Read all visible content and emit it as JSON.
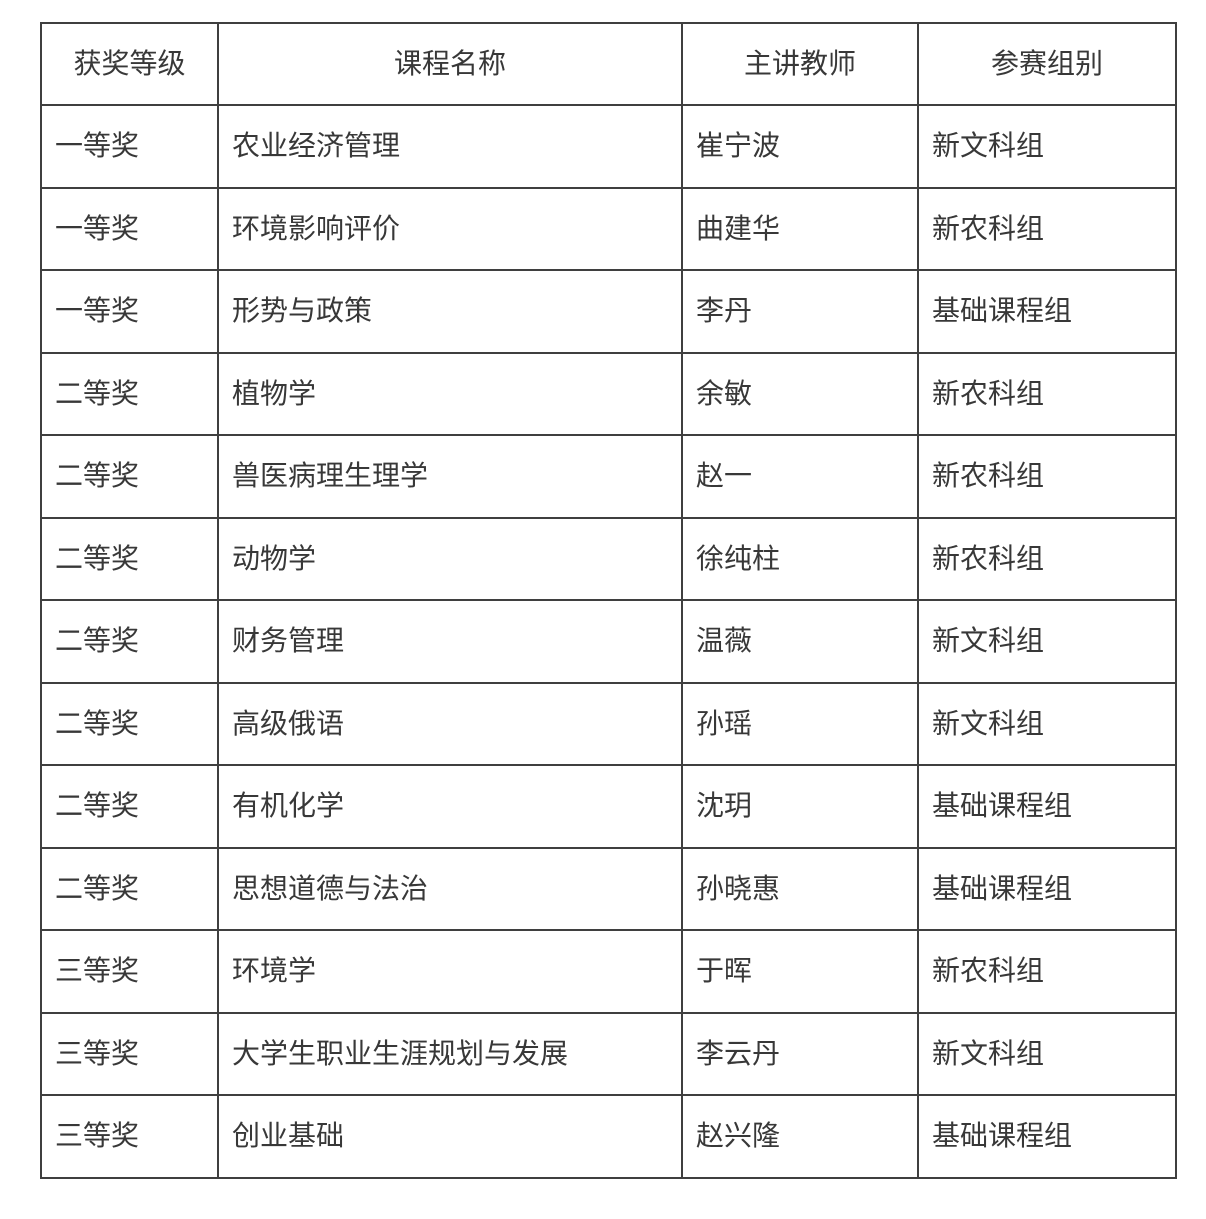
{
  "table": {
    "headers": {
      "award_level": "获奖等级",
      "course_name": "课程名称",
      "teacher": "主讲教师",
      "group": "参赛组别"
    },
    "rows": [
      [
        "一等奖",
        "农业经济管理",
        "崔宁波",
        "新文科组"
      ],
      [
        "一等奖",
        "环境影响评价",
        "曲建华",
        "新农科组"
      ],
      [
        "一等奖",
        "形势与政策",
        "李丹",
        "基础课程组"
      ],
      [
        "二等奖",
        "植物学",
        "余敏",
        "新农科组"
      ],
      [
        "二等奖",
        "兽医病理生理学",
        "赵一",
        "新农科组"
      ],
      [
        "二等奖",
        "动物学",
        "徐纯柱",
        "新农科组"
      ],
      [
        "二等奖",
        "财务管理",
        "温薇",
        "新文科组"
      ],
      [
        "二等奖",
        "高级俄语",
        "孙瑶",
        "新文科组"
      ],
      [
        "二等奖",
        "有机化学",
        "沈玥",
        "基础课程组"
      ],
      [
        "二等奖",
        "思想道德与法治",
        "孙晓惠",
        "基础课程组"
      ],
      [
        "三等奖",
        "环境学",
        "于晖",
        "新农科组"
      ],
      [
        "三等奖",
        "大学生职业生涯规划与发展",
        "李云丹",
        "新文科组"
      ],
      [
        "三等奖",
        "创业基础",
        "赵兴隆",
        "基础课程组"
      ]
    ],
    "colors": {
      "border": "#3f3f3f",
      "text": "#383838",
      "background": "#ffffff"
    }
  }
}
